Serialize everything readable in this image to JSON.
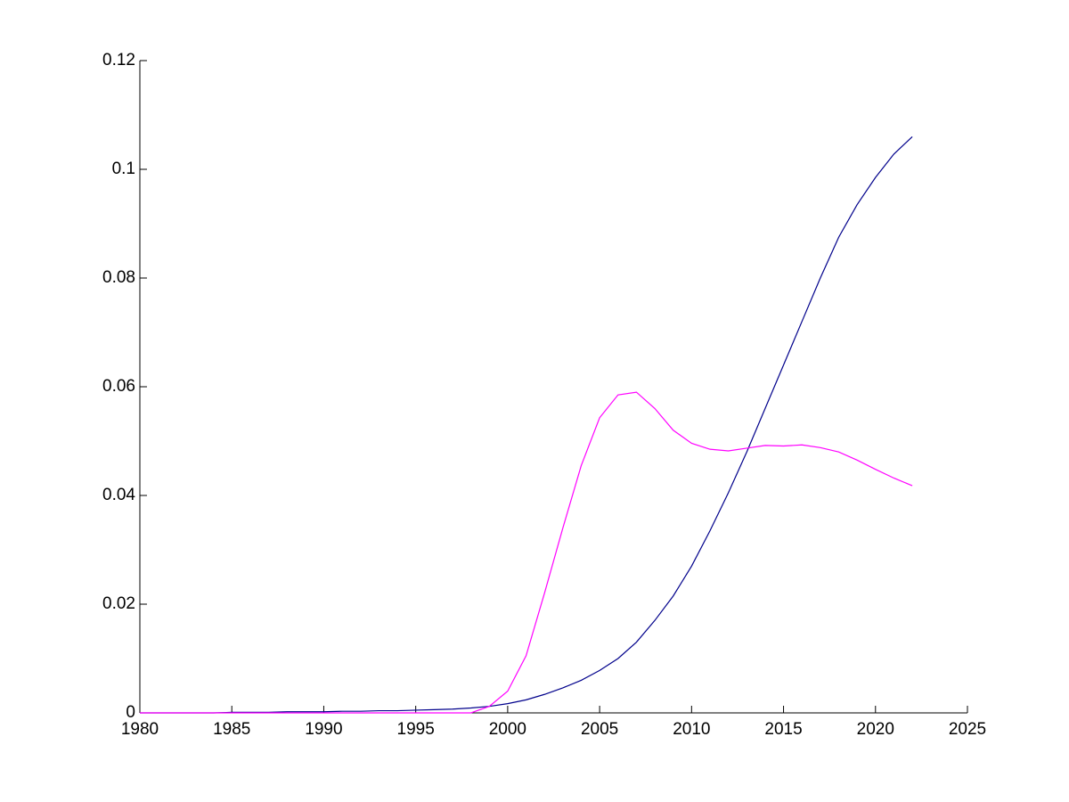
{
  "chart_data": {
    "type": "line",
    "x": [
      1980,
      1981,
      1982,
      1983,
      1984,
      1985,
      1986,
      1987,
      1988,
      1989,
      1990,
      1991,
      1992,
      1993,
      1994,
      1995,
      1996,
      1997,
      1998,
      1999,
      2000,
      2001,
      2002,
      2003,
      2004,
      2005,
      2006,
      2007,
      2008,
      2009,
      2010,
      2011,
      2012,
      2013,
      2014,
      2015,
      2016,
      2017,
      2018,
      2019,
      2020,
      2021,
      2022
    ],
    "series": [
      {
        "color": "#00008b",
        "values": [
          0,
          0,
          0,
          0,
          0,
          0.0001,
          0.0001,
          0.0001,
          0.0002,
          0.0002,
          0.0002,
          0.0003,
          0.0003,
          0.0004,
          0.0004,
          0.0005,
          0.0006,
          0.0007,
          0.0009,
          0.0012,
          0.0017,
          0.0024,
          0.0034,
          0.0046,
          0.006,
          0.0078,
          0.01,
          0.013,
          0.017,
          0.0215,
          0.027,
          0.0335,
          0.0405,
          0.048,
          0.056,
          0.064,
          0.072,
          0.08,
          0.0875,
          0.0935,
          0.0985,
          0.1028,
          0.106
        ]
      },
      {
        "color": "#ff00ff",
        "values": [
          0,
          0,
          0,
          0,
          0,
          0,
          0,
          0,
          0,
          0,
          0,
          0,
          0,
          0,
          0,
          0,
          0,
          0,
          0,
          0.0012,
          0.004,
          0.0105,
          0.022,
          0.034,
          0.0455,
          0.0543,
          0.0585,
          0.059,
          0.056,
          0.052,
          0.0496,
          0.0485,
          0.0482,
          0.0487,
          0.0492,
          0.0491,
          0.0493,
          0.0488,
          0.048,
          0.0465,
          0.0448,
          0.0432,
          0.0418
        ]
      }
    ],
    "xlim": [
      1980,
      2025
    ],
    "xticks": [
      1980,
      1985,
      1990,
      1995,
      2000,
      2005,
      2010,
      2015,
      2020,
      2025
    ],
    "ylim": [
      0,
      0.12
    ],
    "yticks": [
      0,
      0.02,
      0.04,
      0.06,
      0.08,
      0.1,
      0.12
    ],
    "grid": false
  }
}
